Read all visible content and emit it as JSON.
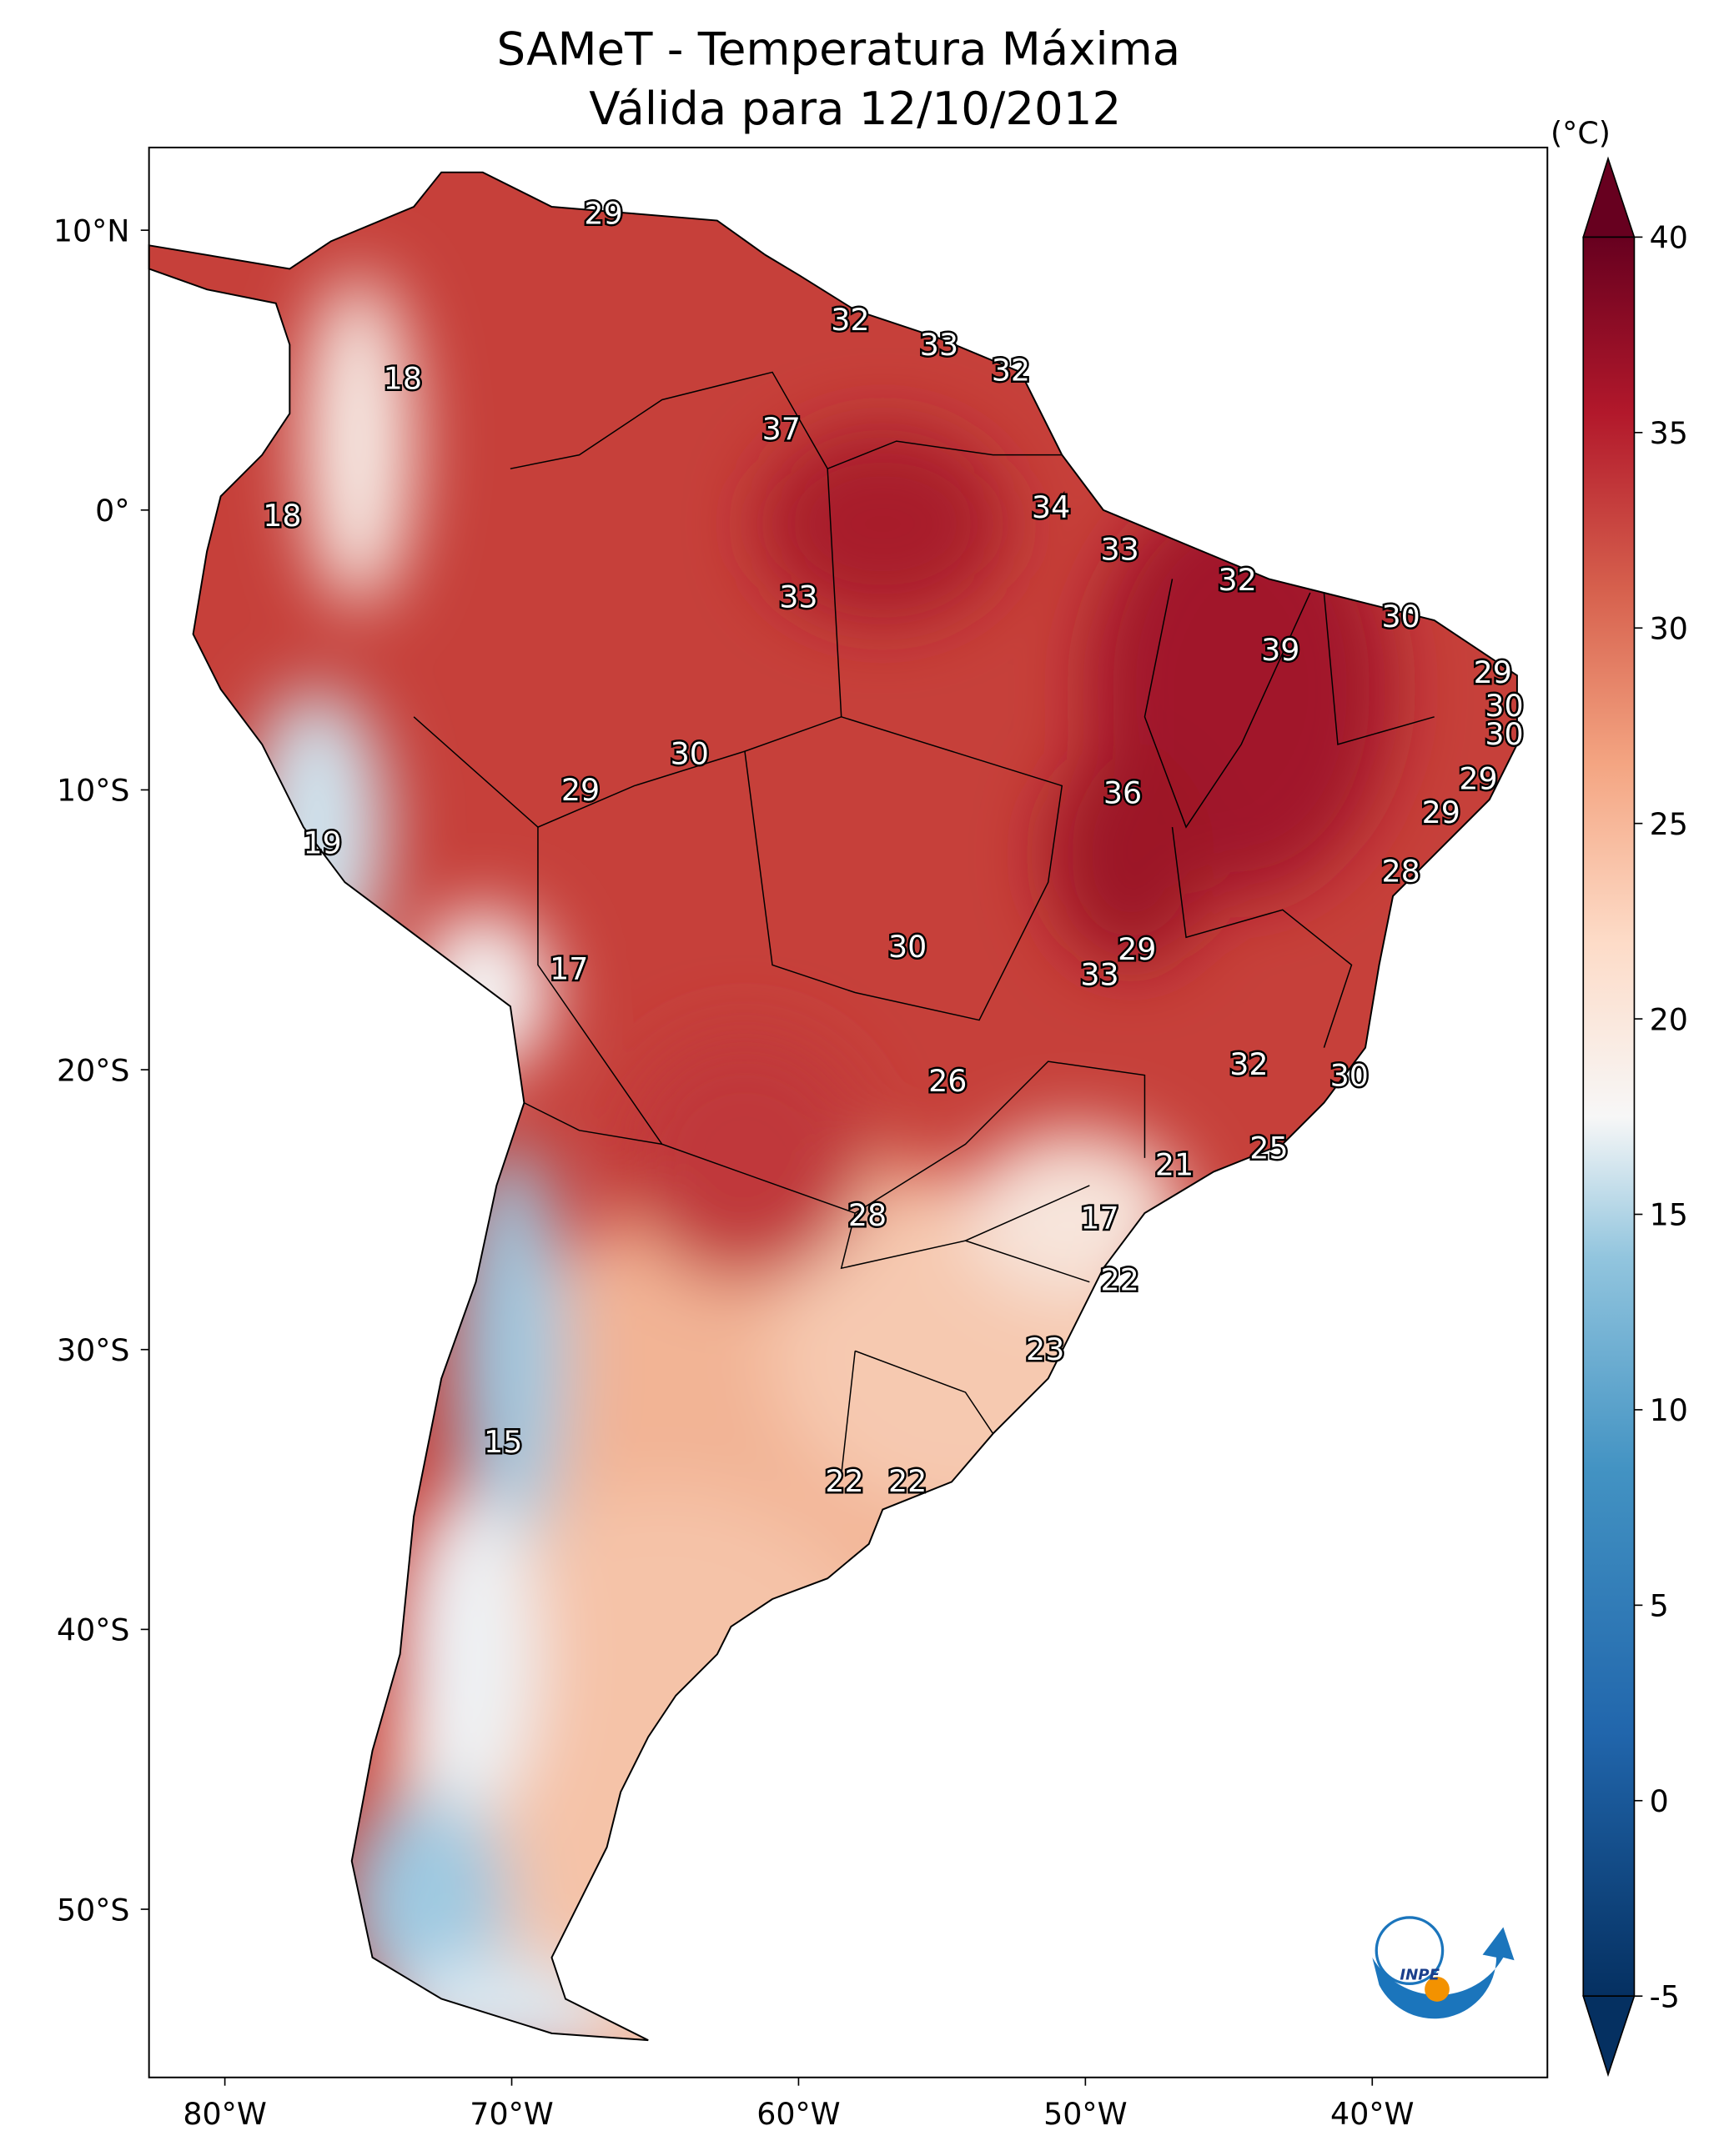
{
  "title": {
    "line1": "SAMeT - Temperatura Máxima",
    "line2": "Válida para 12/10/2012"
  },
  "map": {
    "lon_range": [
      -82.6,
      -33.9
    ],
    "lat_range": [
      -56,
      13
    ],
    "x_ticks": [
      {
        "lon": -80,
        "label": "80°W"
      },
      {
        "lon": -70,
        "label": "70°W"
      },
      {
        "lon": -60,
        "label": "60°W"
      },
      {
        "lon": -50,
        "label": "50°W"
      },
      {
        "lon": -40,
        "label": "40°W"
      }
    ],
    "y_ticks": [
      {
        "lat": 10,
        "label": "10°N"
      },
      {
        "lat": 0,
        "label": "0°"
      },
      {
        "lat": -10,
        "label": "10°S"
      },
      {
        "lat": -20,
        "label": "20°S"
      },
      {
        "lat": -30,
        "label": "30°S"
      },
      {
        "lat": -40,
        "label": "40°S"
      },
      {
        "lat": -50,
        "label": "50°S"
      }
    ],
    "labels": [
      {
        "v": "29",
        "lon": -66.8,
        "lat": 10.6
      },
      {
        "v": "32",
        "lon": -58.2,
        "lat": 6.8
      },
      {
        "v": "33",
        "lon": -55.1,
        "lat": 5.9
      },
      {
        "v": "32",
        "lon": -52.6,
        "lat": 5.0
      },
      {
        "v": "18",
        "lon": -73.8,
        "lat": 4.7
      },
      {
        "v": "37",
        "lon": -60.6,
        "lat": 2.9
      },
      {
        "v": "34",
        "lon": -51.2,
        "lat": 0.1
      },
      {
        "v": "18",
        "lon": -78.0,
        "lat": -0.2
      },
      {
        "v": "33",
        "lon": -48.8,
        "lat": -1.4
      },
      {
        "v": "32",
        "lon": -44.7,
        "lat": -2.5
      },
      {
        "v": "33",
        "lon": -60.0,
        "lat": -3.1
      },
      {
        "v": "30",
        "lon": -39.0,
        "lat": -3.8
      },
      {
        "v": "39",
        "lon": -43.2,
        "lat": -5.0
      },
      {
        "v": "29",
        "lon": -35.8,
        "lat": -5.8
      },
      {
        "v": "30",
        "lon": -35.4,
        "lat": -7.0
      },
      {
        "v": "30",
        "lon": -35.4,
        "lat": -8.0
      },
      {
        "v": "30",
        "lon": -63.8,
        "lat": -8.7
      },
      {
        "v": "29",
        "lon": -36.3,
        "lat": -9.6
      },
      {
        "v": "29",
        "lon": -67.6,
        "lat": -10.0
      },
      {
        "v": "36",
        "lon": -48.7,
        "lat": -10.1
      },
      {
        "v": "29",
        "lon": -37.6,
        "lat": -10.8
      },
      {
        "v": "19",
        "lon": -76.6,
        "lat": -11.9
      },
      {
        "v": "28",
        "lon": -39.0,
        "lat": -12.9
      },
      {
        "v": "30",
        "lon": -56.2,
        "lat": -15.6
      },
      {
        "v": "29",
        "lon": -48.2,
        "lat": -15.7
      },
      {
        "v": "17",
        "lon": -68.0,
        "lat": -16.4
      },
      {
        "v": "33",
        "lon": -49.5,
        "lat": -16.6
      },
      {
        "v": "32",
        "lon": -44.3,
        "lat": -19.8
      },
      {
        "v": "30",
        "lon": -40.8,
        "lat": -20.2
      },
      {
        "v": "26",
        "lon": -54.8,
        "lat": -20.4
      },
      {
        "v": "25",
        "lon": -43.6,
        "lat": -22.8
      },
      {
        "v": "21",
        "lon": -46.9,
        "lat": -23.4
      },
      {
        "v": "28",
        "lon": -57.6,
        "lat": -25.2
      },
      {
        "v": "17",
        "lon": -49.5,
        "lat": -25.3
      },
      {
        "v": "22",
        "lon": -48.8,
        "lat": -27.5
      },
      {
        "v": "23",
        "lon": -51.4,
        "lat": -30.0
      },
      {
        "v": "15",
        "lon": -70.3,
        "lat": -33.3
      },
      {
        "v": "22",
        "lon": -58.4,
        "lat": -34.7
      },
      {
        "v": "22",
        "lon": -56.2,
        "lat": -34.7
      }
    ]
  },
  "colorbar": {
    "unit": "(°C)",
    "range": [
      -5,
      40
    ],
    "colormap": "RdBu_r",
    "extend": "both",
    "ticks": [
      "40",
      "35",
      "30",
      "25",
      "20",
      "15",
      "10",
      "5",
      "0",
      "-5"
    ],
    "colors": [
      "#053061",
      "#2166ac",
      "#4393c3",
      "#92c5de",
      "#f7f7f7",
      "#fddbc7",
      "#f4a582",
      "#d6604d",
      "#b2182b",
      "#67001f"
    ]
  },
  "logo": {
    "text": "INPE"
  }
}
